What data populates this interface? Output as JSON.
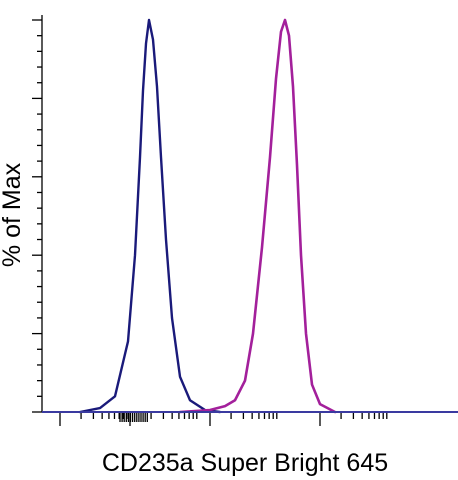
{
  "chart_data": {
    "type": "line",
    "title": "",
    "xlabel": "CD235a Super Bright 645",
    "ylabel": "% of Max",
    "xscale": "log",
    "ylim": [
      0,
      100
    ],
    "grid": false,
    "legend": "none",
    "series": [
      {
        "color": "#1a1a7a",
        "points": [
          [
            80,
            0
          ],
          [
            100,
            1
          ],
          [
            115,
            4
          ],
          [
            128,
            18
          ],
          [
            135,
            40
          ],
          [
            140,
            65
          ],
          [
            143,
            82
          ],
          [
            146,
            94
          ],
          [
            149,
            100
          ],
          [
            153,
            95
          ],
          [
            157,
            83
          ],
          [
            161,
            65
          ],
          [
            166,
            44
          ],
          [
            172,
            24
          ],
          [
            180,
            9
          ],
          [
            190,
            3
          ],
          [
            205,
            0.5
          ],
          [
            220,
            0
          ]
        ]
      },
      {
        "color": "#a3209b",
        "points": [
          [
            180,
            0
          ],
          [
            210,
            0.5
          ],
          [
            225,
            1.5
          ],
          [
            235,
            3
          ],
          [
            245,
            8
          ],
          [
            253,
            20
          ],
          [
            262,
            42
          ],
          [
            270,
            65
          ],
          [
            276,
            85
          ],
          [
            281,
            97
          ],
          [
            285,
            100
          ],
          [
            289,
            96
          ],
          [
            293,
            83
          ],
          [
            297,
            63
          ],
          [
            301,
            40
          ],
          [
            306,
            20
          ],
          [
            312,
            7
          ],
          [
            320,
            2
          ],
          [
            335,
            0
          ]
        ]
      }
    ],
    "x_axis_line_color": "#3a3aa0"
  }
}
